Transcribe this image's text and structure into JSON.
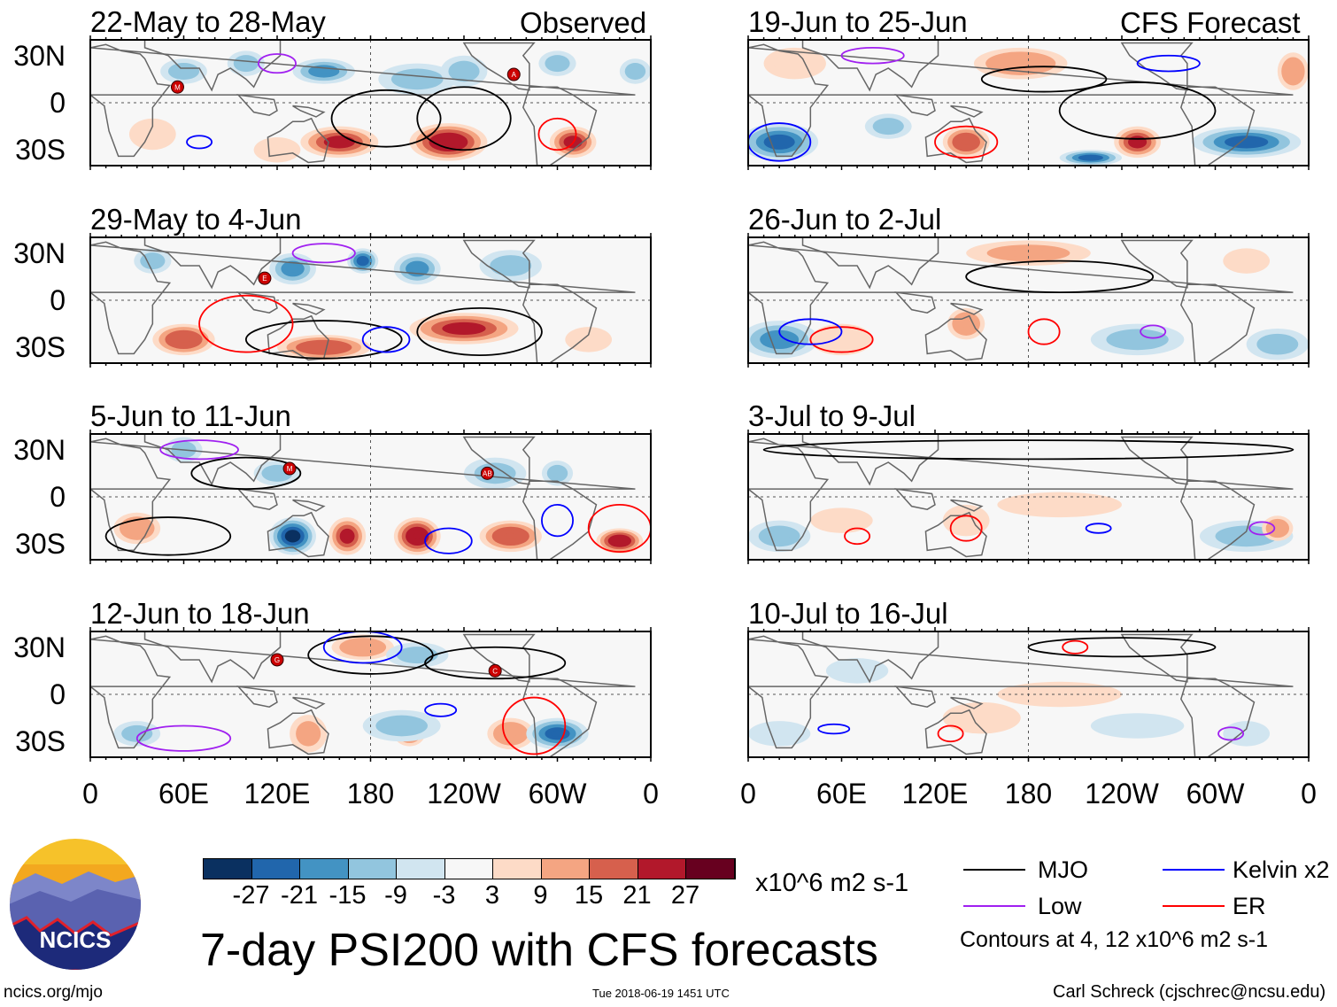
{
  "headers": {
    "observed": "Observed",
    "forecast": "CFS Forecast"
  },
  "lat_labels": [
    "30N",
    "0",
    "30S"
  ],
  "lon_labels": [
    "0",
    "60E",
    "120E",
    "180",
    "120W",
    "60W",
    "0"
  ],
  "panels": [
    {
      "title": "22-May to 28-May",
      "side": "left",
      "row": 0,
      "blobs": [
        [
          60,
          20,
          15,
          8,
          -12
        ],
        [
          100,
          25,
          12,
          8,
          -10
        ],
        [
          150,
          20,
          20,
          8,
          -15
        ],
        [
          210,
          15,
          25,
          10,
          -12
        ],
        [
          240,
          20,
          15,
          10,
          -9
        ],
        [
          300,
          25,
          12,
          8,
          -9
        ],
        [
          350,
          20,
          10,
          8,
          -10
        ],
        [
          40,
          -20,
          15,
          10,
          6
        ],
        [
          160,
          -25,
          25,
          10,
          24
        ],
        [
          230,
          -25,
          25,
          12,
          27
        ],
        [
          310,
          -25,
          15,
          10,
          24
        ],
        [
          120,
          -30,
          15,
          8,
          9
        ]
      ],
      "contours": [
        [
          "MJO",
          190,
          -10,
          35,
          18
        ],
        [
          "MJO",
          240,
          -10,
          30,
          20
        ],
        [
          "Kelvin",
          70,
          -25,
          8,
          4
        ],
        [
          "ER",
          300,
          -20,
          12,
          10
        ],
        [
          "Low",
          120,
          25,
          12,
          6
        ]
      ],
      "storms": [
        [
          "M",
          56,
          10
        ],
        [
          "A",
          272,
          18
        ]
      ]
    },
    {
      "title": "29-May to 4-Jun",
      "side": "left",
      "row": 1,
      "blobs": [
        [
          40,
          25,
          12,
          8,
          -10
        ],
        [
          130,
          20,
          15,
          10,
          -15
        ],
        [
          175,
          25,
          10,
          8,
          -21
        ],
        [
          210,
          20,
          15,
          10,
          -15
        ],
        [
          270,
          22,
          20,
          10,
          -12
        ],
        [
          60,
          -25,
          20,
          10,
          21
        ],
        [
          150,
          -30,
          30,
          8,
          21
        ],
        [
          240,
          -18,
          35,
          10,
          24
        ],
        [
          320,
          -25,
          15,
          8,
          9
        ]
      ],
      "contours": [
        [
          "MJO",
          150,
          -25,
          50,
          12
        ],
        [
          "MJO",
          250,
          -20,
          40,
          15
        ],
        [
          "ER",
          100,
          -15,
          30,
          18
        ],
        [
          "Kelvin",
          190,
          -25,
          15,
          8
        ],
        [
          "Low",
          150,
          30,
          20,
          6
        ]
      ],
      "storms": [
        [
          "E",
          112,
          14
        ]
      ]
    },
    {
      "title": "5-Jun to 11-Jun",
      "side": "left",
      "row": 2,
      "blobs": [
        [
          60,
          30,
          12,
          8,
          -9
        ],
        [
          120,
          15,
          15,
          8,
          -9
        ],
        [
          130,
          -25,
          15,
          12,
          -27
        ],
        [
          165,
          -25,
          12,
          12,
          24
        ],
        [
          210,
          -25,
          15,
          12,
          27
        ],
        [
          260,
          15,
          20,
          10,
          -12
        ],
        [
          270,
          -25,
          20,
          10,
          21
        ],
        [
          340,
          -28,
          15,
          8,
          27
        ],
        [
          30,
          -20,
          15,
          10,
          15
        ],
        [
          300,
          15,
          10,
          8,
          -9
        ]
      ],
      "contours": [
        [
          "MJO",
          100,
          15,
          35,
          10
        ],
        [
          "MJO",
          50,
          -25,
          40,
          12
        ],
        [
          "Kelvin",
          230,
          -28,
          15,
          8
        ],
        [
          "Kelvin",
          300,
          -15,
          10,
          10
        ],
        [
          "ER",
          340,
          -20,
          20,
          15
        ],
        [
          "Low",
          70,
          30,
          25,
          6
        ]
      ],
      "storms": [
        [
          "M",
          128,
          18
        ],
        [
          "AB",
          255,
          15
        ]
      ]
    },
    {
      "title": "12-Jun to 18-Jun",
      "side": "left",
      "row": 3,
      "blobs": [
        [
          30,
          -25,
          15,
          8,
          -9
        ],
        [
          175,
          30,
          20,
          8,
          15
        ],
        [
          210,
          25,
          20,
          8,
          -9
        ],
        [
          140,
          -25,
          12,
          12,
          12
        ],
        [
          205,
          -25,
          10,
          8,
          15
        ],
        [
          270,
          -25,
          15,
          10,
          15
        ],
        [
          300,
          -25,
          20,
          10,
          -21
        ],
        [
          200,
          -20,
          25,
          10,
          -9
        ]
      ],
      "contours": [
        [
          "MJO",
          180,
          25,
          40,
          12
        ],
        [
          "MJO",
          260,
          20,
          45,
          10
        ],
        [
          "Kelvin",
          175,
          30,
          25,
          10
        ],
        [
          "Kelvin",
          225,
          -10,
          10,
          4
        ],
        [
          "ER",
          285,
          -20,
          20,
          18
        ],
        [
          "Low",
          60,
          -28,
          30,
          8
        ]
      ],
      "storms": [
        [
          "G",
          120,
          22
        ],
        [
          "C",
          260,
          15
        ]
      ]
    },
    {
      "title": "19-Jun to 25-Jun",
      "side": "right",
      "row": 0,
      "blobs": [
        [
          20,
          -25,
          25,
          12,
          -21
        ],
        [
          30,
          25,
          20,
          10,
          9
        ],
        [
          175,
          25,
          30,
          10,
          15
        ],
        [
          140,
          -25,
          15,
          10,
          21
        ],
        [
          250,
          -25,
          15,
          10,
          24
        ],
        [
          320,
          -25,
          35,
          10,
          -21
        ],
        [
          350,
          20,
          10,
          12,
          15
        ],
        [
          90,
          -15,
          15,
          8,
          -9
        ],
        [
          220,
          -35,
          20,
          5,
          -21
        ]
      ],
      "contours": [
        [
          "MJO",
          190,
          15,
          40,
          8
        ],
        [
          "MJO",
          250,
          -5,
          50,
          18
        ],
        [
          "Kelvin",
          20,
          -25,
          20,
          12
        ],
        [
          "Kelvin",
          270,
          25,
          20,
          5
        ],
        [
          "ER",
          140,
          -25,
          20,
          10
        ],
        [
          "Low",
          80,
          30,
          20,
          5
        ]
      ],
      "storms": []
    },
    {
      "title": "26-Jun to 2-Jul",
      "side": "right",
      "row": 1,
      "blobs": [
        [
          20,
          -25,
          25,
          12,
          -15
        ],
        [
          140,
          -15,
          12,
          10,
          15
        ],
        [
          180,
          30,
          40,
          8,
          12
        ],
        [
          250,
          -25,
          30,
          10,
          -12
        ],
        [
          340,
          -28,
          20,
          10,
          -12
        ],
        [
          60,
          -25,
          20,
          10,
          9
        ],
        [
          320,
          25,
          15,
          8,
          9
        ]
      ],
      "contours": [
        [
          "MJO",
          200,
          15,
          60,
          10
        ],
        [
          "ER",
          190,
          -20,
          10,
          8
        ],
        [
          "ER",
          60,
          -25,
          20,
          8
        ],
        [
          "Kelvin",
          40,
          -20,
          20,
          8
        ],
        [
          "Low",
          260,
          -20,
          8,
          4
        ]
      ],
      "storms": []
    },
    {
      "title": "3-Jul to 9-Jul",
      "side": "right",
      "row": 2,
      "blobs": [
        [
          20,
          -25,
          20,
          10,
          -9
        ],
        [
          60,
          -15,
          20,
          8,
          6
        ],
        [
          140,
          -15,
          15,
          10,
          9
        ],
        [
          200,
          -5,
          40,
          8,
          6
        ],
        [
          320,
          -25,
          30,
          10,
          -9
        ],
        [
          340,
          -20,
          10,
          8,
          15
        ]
      ],
      "contours": [
        [
          "MJO",
          180,
          30,
          170,
          6
        ],
        [
          "Kelvin",
          225,
          -20,
          8,
          3
        ],
        [
          "ER",
          70,
          -25,
          8,
          5
        ],
        [
          "ER",
          140,
          -20,
          10,
          8
        ],
        [
          "Low",
          330,
          -20,
          8,
          4
        ]
      ],
      "storms": []
    },
    {
      "title": "10-Jul to 16-Jul",
      "side": "right",
      "row": 3,
      "blobs": [
        [
          20,
          -25,
          20,
          8,
          -6
        ],
        [
          150,
          -15,
          25,
          10,
          6
        ],
        [
          200,
          0,
          40,
          8,
          6
        ],
        [
          250,
          -20,
          30,
          8,
          -6
        ],
        [
          320,
          -25,
          15,
          8,
          -6
        ],
        [
          70,
          15,
          20,
          8,
          -6
        ]
      ],
      "contours": [
        [
          "MJO",
          240,
          30,
          60,
          6
        ],
        [
          "ER",
          210,
          30,
          8,
          4
        ],
        [
          "ER",
          130,
          -25,
          8,
          5
        ],
        [
          "Kelvin",
          55,
          -22,
          10,
          3
        ],
        [
          "Low",
          310,
          -25,
          8,
          4
        ]
      ],
      "storms": []
    }
  ],
  "colorbar": {
    "colors": [
      "#0a3060",
      "#2166ac",
      "#4393c3",
      "#92c5de",
      "#d1e5f0",
      "#f7f7f7",
      "#fddbc7",
      "#f4a582",
      "#d6604d",
      "#b2182b",
      "#67001f"
    ],
    "labels": [
      "-27",
      "-21",
      "-15",
      "-9",
      "-3",
      "3",
      "9",
      "15",
      "21",
      "27"
    ],
    "units": "x10^6 m2 s-1"
  },
  "legend": {
    "items": [
      {
        "label": "MJO",
        "color": "#000000"
      },
      {
        "label": "Kelvin x2",
        "color": "#0000ff"
      },
      {
        "label": "Low",
        "color": "#a020f0"
      },
      {
        "label": "ER",
        "color": "#ff0000"
      }
    ],
    "note": "Contours at 4, 12 x10^6 m2 s-1"
  },
  "title": "7-day PSI200 with CFS forecasts",
  "logo": "NCICS",
  "url": "ncics.org/mjo",
  "timestamp": "Tue 2018-06-19 1451 UTC",
  "author": "Carl Schreck (cjschrec@ncsu.edu)"
}
